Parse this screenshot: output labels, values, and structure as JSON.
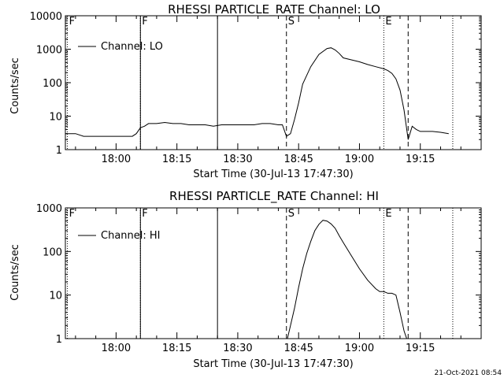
{
  "chart_data": [
    {
      "type": "line",
      "title": "RHESSI PARTICLE_RATE Channel: LO",
      "xlabel": "Start Time (30-Jul-13 17:47:30)",
      "ylabel": "Counts/sec",
      "yscale": "log",
      "xlim": [
        "17:47:30",
        "19:30:00"
      ],
      "ylim": [
        1,
        10000
      ],
      "x_ticks": [
        "18:00",
        "18:15",
        "18:30",
        "18:45",
        "19:00",
        "19:15"
      ],
      "y_ticks": [
        "1",
        "10",
        "100",
        "1000",
        "10000"
      ],
      "legend": {
        "position": "top-left",
        "entries": [
          "Channel: LO"
        ]
      },
      "series": [
        {
          "name": "Channel: LO",
          "x": [
            "17:47:30",
            "17:50",
            "17:52",
            "17:54",
            "17:56",
            "17:58",
            "18:00",
            "18:02",
            "18:04",
            "18:05",
            "18:06",
            "18:07",
            "18:08",
            "18:10",
            "18:12",
            "18:14",
            "18:16",
            "18:18",
            "18:20",
            "18:22",
            "18:24",
            "18:26",
            "18:28",
            "18:30",
            "18:32",
            "18:34",
            "18:36",
            "18:38",
            "18:40",
            "18:41",
            "18:42",
            "18:43",
            "18:44",
            "18:45",
            "18:46",
            "18:48",
            "18:50",
            "18:52",
            "18:53",
            "18:54",
            "18:55",
            "18:56",
            "18:58",
            "19:00",
            "19:02",
            "19:04",
            "19:06",
            "19:07",
            "19:08",
            "19:09",
            "19:10",
            "19:11",
            "19:12",
            "19:13",
            "19:14",
            "19:15",
            "19:16",
            "19:18",
            "19:20",
            "19:22"
          ],
          "y": [
            3,
            3,
            2.5,
            2.5,
            2.5,
            2.5,
            2.5,
            2.5,
            2.5,
            3,
            4.5,
            5,
            6,
            6,
            6.5,
            6,
            6,
            5.5,
            5.5,
            5.5,
            5,
            5.5,
            5.5,
            5.5,
            5.5,
            5.5,
            6,
            6,
            5.5,
            5.5,
            2.5,
            3,
            8,
            25,
            90,
            300,
            700,
            1050,
            1100,
            950,
            750,
            550,
            480,
            420,
            350,
            300,
            260,
            230,
            190,
            130,
            60,
            15,
            2,
            5,
            4,
            3.5,
            3.5,
            3.5,
            3.3,
            3
          ]
        }
      ],
      "markers": [
        {
          "label": "F",
          "style": "dotted",
          "x": "17:48"
        },
        {
          "label": "F",
          "style": "dotted",
          "x": "18:06"
        },
        {
          "label": "",
          "style": "solid",
          "x": "18:06"
        },
        {
          "label": "",
          "style": "solid",
          "x": "18:25"
        },
        {
          "label": "S",
          "style": "dashed",
          "x": "18:42"
        },
        {
          "label": "E",
          "style": "dotted",
          "x": "19:06"
        },
        {
          "label": "",
          "style": "dashed",
          "x": "19:12"
        },
        {
          "label": "",
          "style": "dotted",
          "x": "19:23"
        }
      ]
    },
    {
      "type": "line",
      "title": "RHESSI PARTICLE_RATE Channel: HI",
      "xlabel": "Start Time (30-Jul-13 17:47:30)",
      "ylabel": "Counts/sec",
      "yscale": "log",
      "xlim": [
        "17:47:30",
        "19:30:00"
      ],
      "ylim": [
        1,
        1000
      ],
      "x_ticks": [
        "18:00",
        "18:15",
        "18:30",
        "18:45",
        "19:00",
        "19:15"
      ],
      "y_ticks": [
        "1",
        "10",
        "100",
        "1000"
      ],
      "legend": {
        "position": "top-left",
        "entries": [
          "Channel: HI"
        ]
      },
      "series": [
        {
          "name": "Channel: HI",
          "x": [
            "18:42",
            "18:43",
            "18:44",
            "18:45",
            "18:46",
            "18:47",
            "18:48",
            "18:49",
            "18:50",
            "18:51",
            "18:52",
            "18:53",
            "18:54",
            "18:55",
            "18:56",
            "18:58",
            "19:00",
            "19:02",
            "19:04",
            "19:05",
            "19:06",
            "19:07",
            "19:08",
            "19:09",
            "19:10",
            "19:11",
            "19:12"
          ],
          "y": [
            0.8,
            2,
            5,
            15,
            40,
            90,
            170,
            300,
            420,
            520,
            500,
            430,
            340,
            230,
            160,
            80,
            40,
            22,
            14,
            12,
            12,
            11,
            11,
            10,
            4,
            1.5,
            0.8
          ]
        }
      ],
      "markers": [
        {
          "label": "F",
          "style": "dotted",
          "x": "17:48"
        },
        {
          "label": "F",
          "style": "dotted",
          "x": "18:06"
        },
        {
          "label": "",
          "style": "solid",
          "x": "18:06"
        },
        {
          "label": "",
          "style": "solid",
          "x": "18:25"
        },
        {
          "label": "S",
          "style": "dashed",
          "x": "18:42"
        },
        {
          "label": "E",
          "style": "dotted",
          "x": "19:06"
        },
        {
          "label": "",
          "style": "dashed",
          "x": "19:12"
        },
        {
          "label": "",
          "style": "dotted",
          "x": "19:23"
        }
      ]
    }
  ],
  "footer": {
    "timestamp": "21-Oct-2021 08:54"
  }
}
